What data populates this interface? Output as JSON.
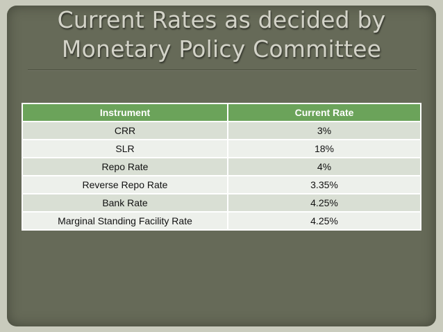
{
  "slide": {
    "title_line1": "Current Rates as decided by",
    "title_line2": "Monetary Policy Committee"
  },
  "table": {
    "headers": [
      "Instrument",
      "Current Rate"
    ],
    "rows": [
      {
        "instrument": "CRR",
        "rate": "3%"
      },
      {
        "instrument": "SLR",
        "rate": "18%"
      },
      {
        "instrument": "Repo Rate",
        "rate": "4%"
      },
      {
        "instrument": "Reverse Repo Rate",
        "rate": "3.35%"
      },
      {
        "instrument": "Bank Rate",
        "rate": "4.25%"
      },
      {
        "instrument": "Marginal Standing Facility Rate",
        "rate": "4.25%"
      }
    ]
  },
  "colors": {
    "background": "#666a58",
    "header_green": "#6ba35a",
    "row_band_dark": "#d9dfd4",
    "row_band_light": "#edf0eb"
  }
}
